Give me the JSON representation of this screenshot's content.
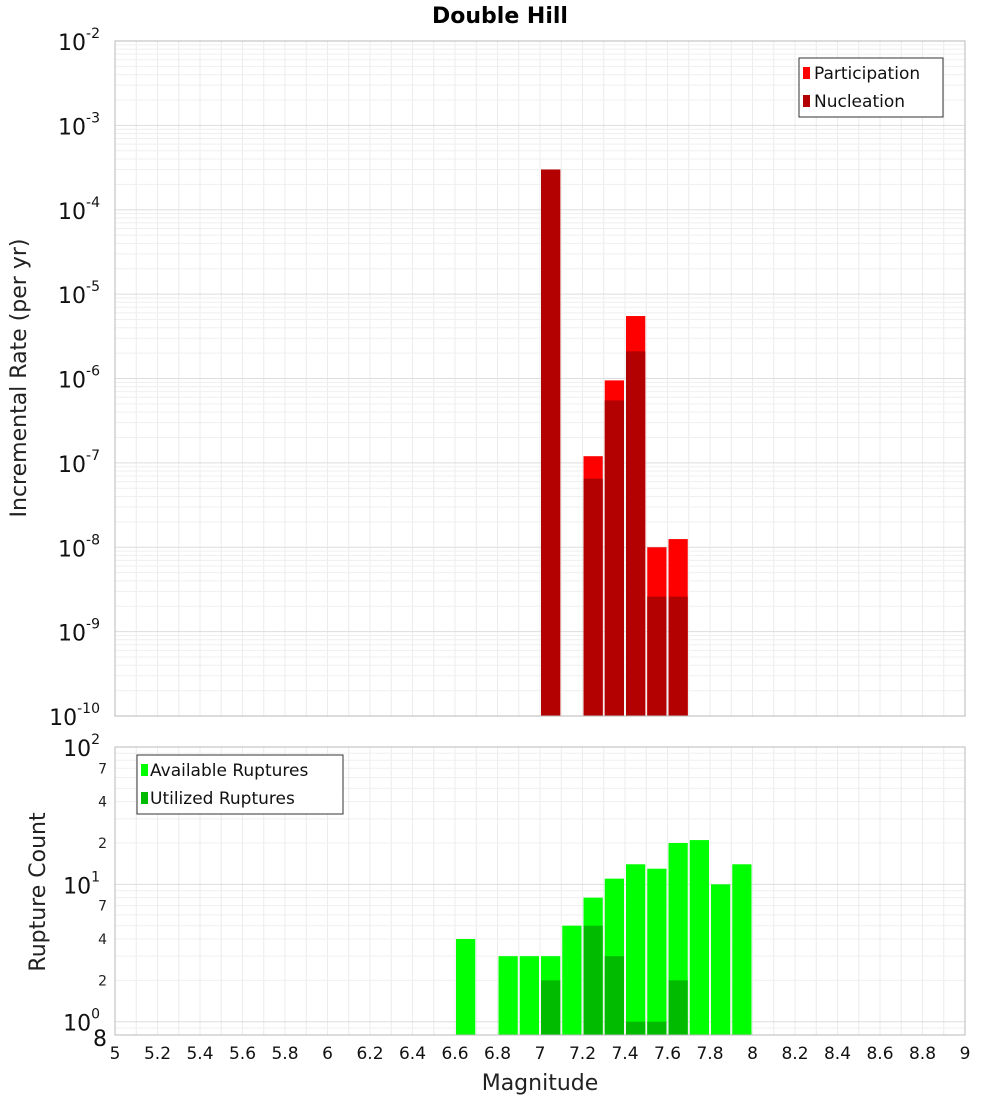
{
  "title": "Double Hill",
  "chart_data": [
    {
      "type": "bar",
      "title": "Double Hill",
      "xlabel": "Magnitude",
      "ylabel": "Incremental Rate (per yr)",
      "yscale": "log",
      "xlim": [
        5,
        9
      ],
      "ylim": [
        1e-10,
        0.01
      ],
      "y_major_ticks": [
        {
          "base": "10",
          "exp": "-2",
          "value": 0.01
        },
        {
          "base": "10",
          "exp": "-3",
          "value": 0.001
        },
        {
          "base": "10",
          "exp": "-4",
          "value": 0.0001
        },
        {
          "base": "10",
          "exp": "-5",
          "value": 1e-05
        },
        {
          "base": "10",
          "exp": "-6",
          "value": 1e-06
        },
        {
          "base": "10",
          "exp": "-7",
          "value": 1e-07
        },
        {
          "base": "10",
          "exp": "-8",
          "value": 1e-08
        },
        {
          "base": "10",
          "exp": "-9",
          "value": 1e-09
        },
        {
          "base": "10",
          "exp": "-10",
          "value": 1e-10
        }
      ],
      "bin_width": 0.1,
      "grid": true,
      "legend_position": "top-right",
      "series": [
        {
          "name": "Participation",
          "color": "#ff0000",
          "points": [
            {
              "x": 7.05,
              "y": 0.0003
            },
            {
              "x": 7.25,
              "y": 1.2e-07
            },
            {
              "x": 7.35,
              "y": 9.5e-07
            },
            {
              "x": 7.45,
              "y": 5.5e-06
            },
            {
              "x": 7.55,
              "y": 1e-08
            },
            {
              "x": 7.65,
              "y": 1.25e-08
            }
          ]
        },
        {
          "name": "Nucleation",
          "color": "#b30000",
          "points": [
            {
              "x": 7.05,
              "y": 0.0003
            },
            {
              "x": 7.25,
              "y": 6.5e-08
            },
            {
              "x": 7.35,
              "y": 5.5e-07
            },
            {
              "x": 7.45,
              "y": 2.1e-06
            },
            {
              "x": 7.55,
              "y": 2.6e-09
            },
            {
              "x": 7.65,
              "y": 2.6e-09
            }
          ]
        }
      ]
    },
    {
      "type": "bar",
      "xlabel": "Magnitude",
      "ylabel": "Rupture Count",
      "yscale": "log",
      "xlim": [
        5,
        9
      ],
      "ylim": [
        0.8,
        100
      ],
      "y_major_ticks": [
        {
          "base": "10",
          "exp": "2",
          "value": 100
        },
        {
          "base": "10",
          "exp": "1",
          "value": 10
        },
        {
          "base": "10",
          "exp": "0",
          "value": 1
        }
      ],
      "y_minor_ticks": [
        {
          "label": "7",
          "value": 70
        },
        {
          "label": "4",
          "value": 40
        },
        {
          "label": "2",
          "value": 20
        },
        {
          "label": "7",
          "value": 7
        },
        {
          "label": "4",
          "value": 4
        },
        {
          "label": "2",
          "value": 2
        },
        {
          "label": "8",
          "value": 0.8
        }
      ],
      "x_ticks": [
        "5",
        "5.2",
        "5.4",
        "5.6",
        "5.8",
        "6",
        "6.2",
        "6.4",
        "6.6",
        "6.8",
        "7",
        "7.2",
        "7.4",
        "7.6",
        "7.8",
        "8",
        "8.2",
        "8.4",
        "8.6",
        "8.8",
        "9"
      ],
      "bin_width": 0.1,
      "grid": true,
      "legend_position": "top-left",
      "series": [
        {
          "name": "Available Ruptures",
          "color": "#00ff00",
          "points": [
            {
              "x": 6.65,
              "y": 4
            },
            {
              "x": 6.85,
              "y": 3
            },
            {
              "x": 6.95,
              "y": 3
            },
            {
              "x": 7.05,
              "y": 3
            },
            {
              "x": 7.15,
              "y": 5
            },
            {
              "x": 7.25,
              "y": 8
            },
            {
              "x": 7.35,
              "y": 11
            },
            {
              "x": 7.45,
              "y": 14
            },
            {
              "x": 7.55,
              "y": 13
            },
            {
              "x": 7.65,
              "y": 20
            },
            {
              "x": 7.75,
              "y": 21
            },
            {
              "x": 7.85,
              "y": 10
            },
            {
              "x": 7.95,
              "y": 14
            }
          ]
        },
        {
          "name": "Utilized Ruptures",
          "color": "#00bb00",
          "points": [
            {
              "x": 7.05,
              "y": 2
            },
            {
              "x": 7.25,
              "y": 5
            },
            {
              "x": 7.35,
              "y": 3
            },
            {
              "x": 7.45,
              "y": 1
            },
            {
              "x": 7.55,
              "y": 1
            },
            {
              "x": 7.65,
              "y": 2
            }
          ]
        }
      ]
    }
  ]
}
